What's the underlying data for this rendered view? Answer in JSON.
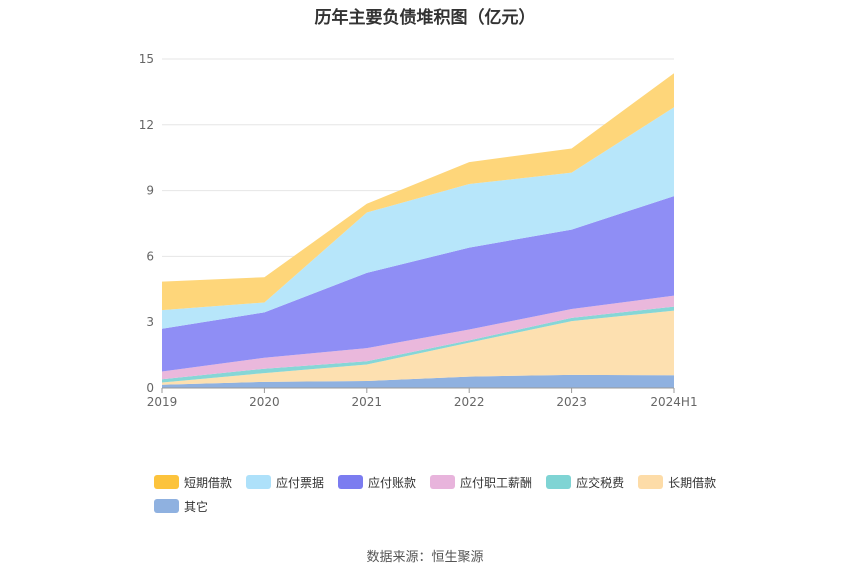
{
  "source_note": "数据来源：恒生聚源",
  "chart_data": {
    "type": "area",
    "stacked": true,
    "title": "历年主要负债堆积图（亿元）",
    "categories": [
      "2019",
      "2020",
      "2021",
      "2022",
      "2023",
      "2024H1"
    ],
    "ylim": [
      0,
      15
    ],
    "yticks": [
      0,
      3,
      6,
      9,
      12,
      15
    ],
    "grid": true,
    "legend_position": "bottom",
    "series": [
      {
        "name": "其它",
        "color": "#8fb1e0",
        "values": [
          0.15,
          0.28,
          0.32,
          0.52,
          0.6,
          0.58
        ]
      },
      {
        "name": "长期借款",
        "color": "#fde0b0",
        "values": [
          0.1,
          0.4,
          0.75,
          1.55,
          2.45,
          2.95
        ]
      },
      {
        "name": "应交税费",
        "color": "#86d6d6",
        "values": [
          0.15,
          0.2,
          0.15,
          0.1,
          0.15,
          0.18
        ]
      },
      {
        "name": "应付职工薪酬",
        "color": "#eab8dc",
        "values": [
          0.35,
          0.5,
          0.6,
          0.5,
          0.4,
          0.5
        ]
      },
      {
        "name": "应付账款",
        "color": "#8f8ef5",
        "values": [
          1.95,
          2.07,
          3.43,
          3.73,
          3.62,
          4.54
        ]
      },
      {
        "name": "应付票据",
        "color": "#b7e6fa",
        "values": [
          0.85,
          0.45,
          2.75,
          2.9,
          2.6,
          4.05
        ]
      },
      {
        "name": "短期借款",
        "color": "#fed67a",
        "values": [
          1.3,
          1.15,
          0.4,
          1.0,
          1.1,
          1.55
        ]
      }
    ],
    "legend_order": [
      "短期借款",
      "应付票据",
      "应付账款",
      "应付职工薪酬",
      "应交税费",
      "长期借款",
      "其它"
    ],
    "legend_colors": {
      "短期借款": "#fcc33c",
      "应付票据": "#aee1fa",
      "应付账款": "#7b7cf0",
      "应付职工薪酬": "#e8b4dc",
      "应交税费": "#7fd4d4",
      "长期借款": "#fddca8",
      "其它": "#8fb1e0"
    }
  }
}
